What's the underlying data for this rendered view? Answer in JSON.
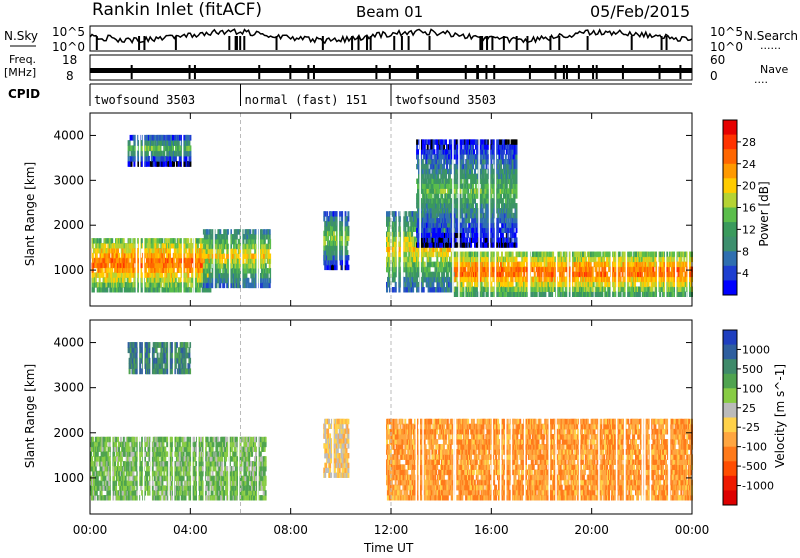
{
  "header": {
    "station": "Rankin Inlet (fitACF)",
    "beam": "Beam 01",
    "date": "05/Feb/2015"
  },
  "noise_panel": {
    "left_label": "N.Sky",
    "right_label": "N.Search",
    "y_ticks_left": [
      "10^5",
      "10^0"
    ],
    "y_ticks_right": [
      "10^5",
      "10^0"
    ]
  },
  "freq_panel": {
    "left_label": "Freq.",
    "left_unit": "[MHz]",
    "right_label": "Nave",
    "y_ticks_left": [
      "18",
      "8"
    ],
    "y_ticks_right": [
      "60",
      "0"
    ]
  },
  "cpid": {
    "label": "CPID",
    "segments": [
      {
        "name": "twofsound 3503",
        "start_h": 0,
        "end_h": 6
      },
      {
        "name": "normal (fast) 151",
        "start_h": 6,
        "end_h": 12
      },
      {
        "name": "twofsound 3503",
        "start_h": 12,
        "end_h": 24
      }
    ]
  },
  "power_colorbar": {
    "label": "Power [dB]",
    "ticks": [
      "28",
      "24",
      "20",
      "16",
      "12",
      "8",
      "4"
    ],
    "colors": [
      "#e60000",
      "#ff3300",
      "#ff6600",
      "#ff9900",
      "#ffcc00",
      "#b5d334",
      "#5bbd4b",
      "#3a9a5c",
      "#3d8f6e",
      "#2f6fb0",
      "#1e3fd0",
      "#0000ff"
    ]
  },
  "velocity_colorbar": {
    "label": "Velocity [m s^-1]",
    "ticks": [
      "1000",
      "500",
      "100",
      "25",
      "-25",
      "-100",
      "-500",
      "-1000"
    ],
    "colors": [
      "#1f3fbf",
      "#2f5f9f",
      "#3f8a6a",
      "#4fa34f",
      "#88cc44",
      "#bbbbbb",
      "#ffd24a",
      "#ffa640",
      "#ff7a1a",
      "#ff4d00",
      "#ee1a00",
      "#dd0000"
    ]
  },
  "chart_data": [
    {
      "type": "heatmap",
      "panel": "power",
      "ylabel": "Slant Range [km]",
      "xlim": [
        0,
        24
      ],
      "ylim": [
        200,
        4500
      ],
      "yticks": [
        1000,
        2000,
        3000,
        4000
      ],
      "colorbar_range_db": [
        0,
        32
      ],
      "echo_regions": [
        {
          "t0": 0.0,
          "t1": 4.8,
          "r0": 500,
          "r1": 1700,
          "db": 26
        },
        {
          "t0": 4.5,
          "t1": 7.2,
          "r0": 600,
          "r1": 1900,
          "db": 20
        },
        {
          "t0": 9.3,
          "t1": 10.3,
          "r0": 1000,
          "r1": 2300,
          "db": 16
        },
        {
          "t0": 11.8,
          "t1": 14.5,
          "r0": 500,
          "r1": 2300,
          "db": 20
        },
        {
          "t0": 14.5,
          "t1": 24.0,
          "r0": 400,
          "r1": 1400,
          "db": 26
        },
        {
          "t0": 1.5,
          "t1": 4.0,
          "r0": 3300,
          "r1": 4000,
          "db": 14
        },
        {
          "t0": 13.0,
          "t1": 17.0,
          "r0": 1500,
          "r1": 3900,
          "db": 14
        }
      ]
    },
    {
      "type": "heatmap",
      "panel": "velocity",
      "ylabel": "Slant Range [km]",
      "xlabel": "Time UT",
      "xlim": [
        0,
        24
      ],
      "ylim": [
        200,
        4500
      ],
      "yticks": [
        1000,
        2000,
        3000,
        4000
      ],
      "xticks": [
        "00:00",
        "04:00",
        "08:00",
        "12:00",
        "16:00",
        "20:00",
        "00:00"
      ],
      "echo_regions": [
        {
          "t0": 0.0,
          "t1": 7.0,
          "r0": 500,
          "r1": 1900,
          "velocity": 300
        },
        {
          "t0": 9.3,
          "t1": 10.3,
          "r0": 1000,
          "r1": 2300,
          "velocity": -50
        },
        {
          "t0": 11.8,
          "t1": 24.0,
          "r0": 500,
          "r1": 2300,
          "velocity": -300
        },
        {
          "t0": 1.5,
          "t1": 4.0,
          "r0": 3300,
          "r1": 4000,
          "velocity": 600
        }
      ]
    }
  ]
}
